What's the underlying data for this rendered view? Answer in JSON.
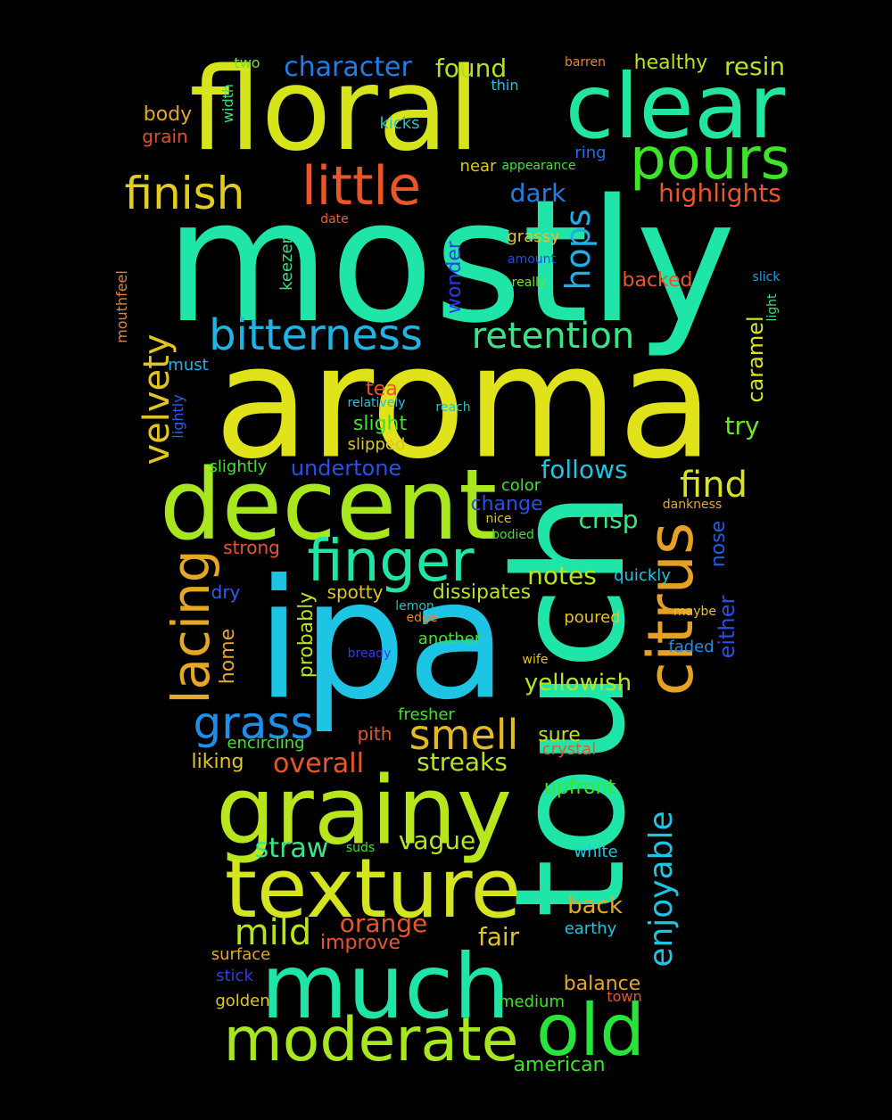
{
  "words": [
    {
      "text": "mostly",
      "color": "#1fe6a8",
      "vertical": false
    },
    {
      "text": "aroma",
      "color": "#e0e21a",
      "vertical": false
    },
    {
      "text": "ipa",
      "color": "#1ec4e4",
      "vertical": false
    },
    {
      "text": "touch",
      "color": "#1fe6a8",
      "vertical": true
    },
    {
      "text": "floral",
      "color": "#d6e41c",
      "vertical": false
    },
    {
      "text": "clear",
      "color": "#22e6a0",
      "vertical": false
    },
    {
      "text": "decent",
      "color": "#a8e61e",
      "vertical": false
    },
    {
      "text": "grainy",
      "color": "#b8e61c",
      "vertical": false
    },
    {
      "text": "texture",
      "color": "#d4e41e",
      "vertical": false
    },
    {
      "text": "much",
      "color": "#1fe6a8",
      "vertical": false
    },
    {
      "text": "old",
      "color": "#28e43a",
      "vertical": false
    },
    {
      "text": "moderate",
      "color": "#a8e61e",
      "vertical": false
    },
    {
      "text": "pours",
      "color": "#3ee428",
      "vertical": false
    },
    {
      "text": "little",
      "color": "#e8562a",
      "vertical": false
    },
    {
      "text": "finish",
      "color": "#e2cc1e",
      "vertical": false
    },
    {
      "text": "finger",
      "color": "#1fe6a8",
      "vertical": false
    },
    {
      "text": "citrus",
      "color": "#e6a022",
      "vertical": true
    },
    {
      "text": "bitterness",
      "color": "#1eb4e4",
      "vertical": false
    },
    {
      "text": "retention",
      "color": "#38e68a",
      "vertical": false
    },
    {
      "text": "lacing",
      "color": "#e6a822",
      "vertical": true
    },
    {
      "text": "grass",
      "color": "#1e8ee6",
      "vertical": false
    },
    {
      "text": "smell",
      "color": "#e2ba22",
      "vertical": false
    },
    {
      "text": "find",
      "color": "#d8e41e",
      "vertical": false
    },
    {
      "text": "velvety",
      "color": "#e2c41e",
      "vertical": true
    },
    {
      "text": "enjoyable",
      "color": "#1ec4e4",
      "vertical": true
    },
    {
      "text": "hops",
      "color": "#1eb0e4",
      "vertical": true
    },
    {
      "text": "character",
      "color": "#1e7ee6",
      "vertical": false
    },
    {
      "text": "found",
      "color": "#b0e21e",
      "vertical": false
    },
    {
      "text": "resin",
      "color": "#b8e41e",
      "vertical": false
    },
    {
      "text": "healthy",
      "color": "#b8e41e",
      "vertical": false
    },
    {
      "text": "two",
      "color": "#6ee428",
      "vertical": false
    },
    {
      "text": "barren",
      "color": "#e6862a",
      "vertical": false
    },
    {
      "text": "thin",
      "color": "#1ec4e4",
      "vertical": false
    },
    {
      "text": "body",
      "color": "#e6a822",
      "vertical": false
    },
    {
      "text": "grain",
      "color": "#e64c2a",
      "vertical": false
    },
    {
      "text": "width",
      "color": "#38e07a",
      "vertical": true
    },
    {
      "text": "kicks",
      "color": "#1ec4c4",
      "vertical": false
    },
    {
      "text": "ring",
      "color": "#1e6ee6",
      "vertical": false
    },
    {
      "text": "near",
      "color": "#e2c41e",
      "vertical": false
    },
    {
      "text": "appearance",
      "color": "#3ee428",
      "vertical": false
    },
    {
      "text": "highlights",
      "color": "#e8562a",
      "vertical": false
    },
    {
      "text": "dark",
      "color": "#1e7ee6",
      "vertical": false
    },
    {
      "text": "date",
      "color": "#e6602a",
      "vertical": false
    },
    {
      "text": "grassy",
      "color": "#e2c41e",
      "vertical": false
    },
    {
      "text": "amount",
      "color": "#1e4ee6",
      "vertical": false
    },
    {
      "text": "really",
      "color": "#6ee428",
      "vertical": false
    },
    {
      "text": "keezer",
      "color": "#38e07a",
      "vertical": true
    },
    {
      "text": "wonder",
      "color": "#2a3ee6",
      "vertical": true
    },
    {
      "text": "backed",
      "color": "#e8562a",
      "vertical": false
    },
    {
      "text": "slick",
      "color": "#1e9ee6",
      "vertical": false
    },
    {
      "text": "light",
      "color": "#38e07a",
      "vertical": true
    },
    {
      "text": "mouthfeel",
      "color": "#e6862a",
      "vertical": true
    },
    {
      "text": "caramel",
      "color": "#d8e41e",
      "vertical": true
    },
    {
      "text": "must",
      "color": "#1eb4e4",
      "vertical": false
    },
    {
      "text": "lightly",
      "color": "#2a5ee6",
      "vertical": true
    },
    {
      "text": "tea",
      "color": "#e8562a",
      "vertical": false
    },
    {
      "text": "relatively",
      "color": "#1ec4e4",
      "vertical": false
    },
    {
      "text": "reach",
      "color": "#1ec4c4",
      "vertical": false
    },
    {
      "text": "slight",
      "color": "#3ee428",
      "vertical": false
    },
    {
      "text": "try",
      "color": "#6ee428",
      "vertical": false
    },
    {
      "text": "slipped",
      "color": "#e2c41e",
      "vertical": false
    },
    {
      "text": "slightly",
      "color": "#3ee428",
      "vertical": false
    },
    {
      "text": "undertone",
      "color": "#2a4ee6",
      "vertical": false
    },
    {
      "text": "follows",
      "color": "#1ec4e4",
      "vertical": false
    },
    {
      "text": "color",
      "color": "#3ee428",
      "vertical": false
    },
    {
      "text": "change",
      "color": "#2a4ee6",
      "vertical": false
    },
    {
      "text": "dankness",
      "color": "#e6a822",
      "vertical": false
    },
    {
      "text": "nice",
      "color": "#e2c41e",
      "vertical": false
    },
    {
      "text": "bodied",
      "color": "#3ee428",
      "vertical": false
    },
    {
      "text": "crisp",
      "color": "#38e68a",
      "vertical": false
    },
    {
      "text": "nose",
      "color": "#1e5ee6",
      "vertical": true
    },
    {
      "text": "strong",
      "color": "#e8562a",
      "vertical": false
    },
    {
      "text": "dry",
      "color": "#2a5ee6",
      "vertical": false
    },
    {
      "text": "notes",
      "color": "#b8e41e",
      "vertical": false
    },
    {
      "text": "quickly",
      "color": "#1ec4e4",
      "vertical": false
    },
    {
      "text": "spotty",
      "color": "#e2c41e",
      "vertical": false
    },
    {
      "text": "dissipates",
      "color": "#b8e41e",
      "vertical": false
    },
    {
      "text": "lemon",
      "color": "#1ec4c4",
      "vertical": false
    },
    {
      "text": "maybe",
      "color": "#e2c41e",
      "vertical": false
    },
    {
      "text": "either",
      "color": "#2a4ee6",
      "vertical": true
    },
    {
      "text": "edge",
      "color": "#e6862a",
      "vertical": false
    },
    {
      "text": "poured",
      "color": "#e2c41e",
      "vertical": false
    },
    {
      "text": "home",
      "color": "#e6a822",
      "vertical": true
    },
    {
      "text": "probably",
      "color": "#b8e41e",
      "vertical": true
    },
    {
      "text": "another",
      "color": "#3ee428",
      "vertical": false
    },
    {
      "text": "faded",
      "color": "#1e8ee6",
      "vertical": false
    },
    {
      "text": "bready",
      "color": "#2a3ee6",
      "vertical": false
    },
    {
      "text": "wife",
      "color": "#e2c41e",
      "vertical": false
    },
    {
      "text": "yellowish",
      "color": "#b8e41e",
      "vertical": false
    },
    {
      "text": "fresher",
      "color": "#3ee428",
      "vertical": false
    },
    {
      "text": "encircling",
      "color": "#3ee428",
      "vertical": false
    },
    {
      "text": "pith",
      "color": "#e8562a",
      "vertical": false
    },
    {
      "text": "sure",
      "color": "#b8e41e",
      "vertical": false
    },
    {
      "text": "crystal",
      "color": "#e8562a",
      "vertical": false
    },
    {
      "text": "liking",
      "color": "#e2c41e",
      "vertical": false
    },
    {
      "text": "overall",
      "color": "#e8562a",
      "vertical": false
    },
    {
      "text": "streaks",
      "color": "#b8e41e",
      "vertical": false
    },
    {
      "text": "upfront",
      "color": "#3ee428",
      "vertical": false
    },
    {
      "text": "straw",
      "color": "#38e68a",
      "vertical": false
    },
    {
      "text": "suds",
      "color": "#3ee428",
      "vertical": false
    },
    {
      "text": "vague",
      "color": "#b8e41e",
      "vertical": false
    },
    {
      "text": "white",
      "color": "#1ec4e4",
      "vertical": false
    },
    {
      "text": "back",
      "color": "#e6a822",
      "vertical": false
    },
    {
      "text": "orange",
      "color": "#e8562a",
      "vertical": false
    },
    {
      "text": "mild",
      "color": "#b8e41e",
      "vertical": false
    },
    {
      "text": "improve",
      "color": "#e8562a",
      "vertical": false
    },
    {
      "text": "fair",
      "color": "#e2c41e",
      "vertical": false
    },
    {
      "text": "earthy",
      "color": "#1ec4e4",
      "vertical": false
    },
    {
      "text": "surface",
      "color": "#e6a822",
      "vertical": false
    },
    {
      "text": "stick",
      "color": "#2a3ee6",
      "vertical": false
    },
    {
      "text": "balance",
      "color": "#e6a822",
      "vertical": false
    },
    {
      "text": "town",
      "color": "#e8562a",
      "vertical": false
    },
    {
      "text": "golden",
      "color": "#e2c41e",
      "vertical": false
    },
    {
      "text": "medium",
      "color": "#3ee428",
      "vertical": false
    },
    {
      "text": "american",
      "color": "#3ee428",
      "vertical": false
    }
  ]
}
